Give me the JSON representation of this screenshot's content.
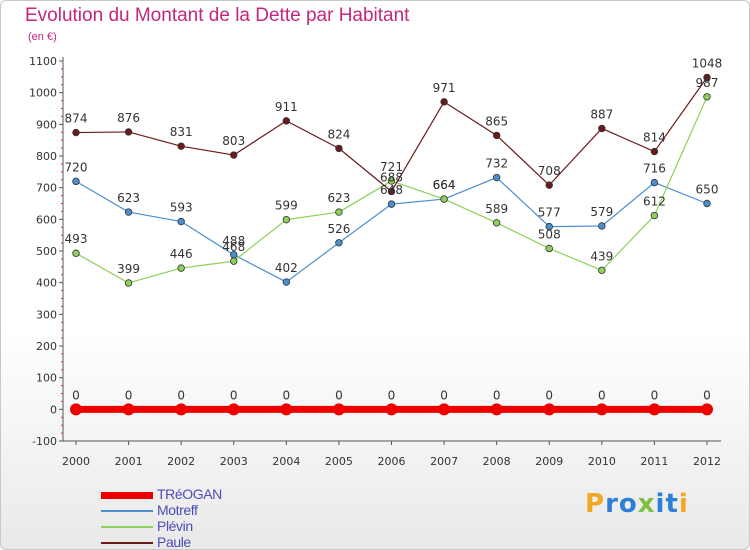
{
  "title": "Evolution du Montant de la Dette par Habitant",
  "subtitle": "(en €)",
  "logo": {
    "letters": [
      "P",
      "r",
      "o",
      "x",
      "i",
      "t",
      "i"
    ],
    "colors": [
      "#f5a623",
      "#2e7fd6",
      "#2e7fd6",
      "#7cc142",
      "#2e7fd6",
      "#2e7fd6",
      "#f5a623"
    ]
  },
  "chart_data": {
    "type": "line",
    "x": [
      2000,
      2001,
      2002,
      2003,
      2004,
      2005,
      2006,
      2007,
      2008,
      2009,
      2010,
      2011,
      2012
    ],
    "ylim": [
      -100,
      1100
    ],
    "yticks": [
      -100,
      0,
      100,
      200,
      300,
      400,
      500,
      600,
      700,
      800,
      900,
      1000,
      1100
    ],
    "grid": false,
    "legend": "bottom-left",
    "series": [
      {
        "name": "TRéOGAN",
        "color": "#ee0000",
        "values": [
          0,
          0,
          0,
          0,
          0,
          0,
          0,
          0,
          0,
          0,
          0,
          0,
          0
        ]
      },
      {
        "name": "Motreff",
        "color": "#4a90d0",
        "values": [
          720,
          623,
          593,
          488,
          402,
          526,
          648,
          664,
          732,
          577,
          579,
          716,
          650
        ]
      },
      {
        "name": "Plévin",
        "color": "#8fd05a",
        "values": [
          493,
          399,
          446,
          468,
          599,
          623,
          721,
          664,
          589,
          508,
          439,
          612,
          987
        ]
      },
      {
        "name": "Paule",
        "color": "#6b1a1a",
        "values": [
          874,
          876,
          831,
          803,
          911,
          824,
          688,
          971,
          865,
          708,
          887,
          814,
          1048
        ]
      }
    ]
  }
}
